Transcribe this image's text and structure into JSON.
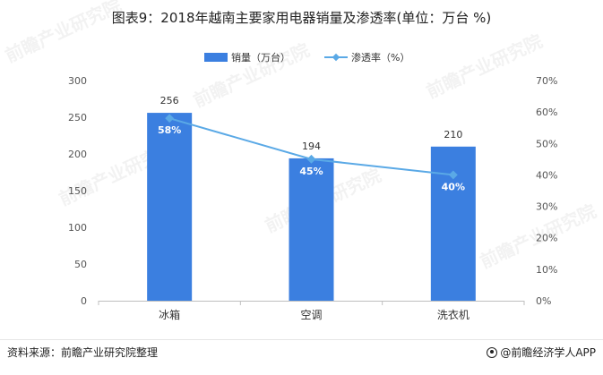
{
  "title": "图表9：2018年越南主要家用电器销量及渗透率(单位：万台 %)",
  "source": "资料来源：前瞻产业研究院整理",
  "brand": "@前瞻经济学人APP",
  "watermark": "前瞻产业研究院",
  "colors": {
    "bar": "#3b7fe0",
    "line": "#5aa9e6",
    "axis": "#8c8c8c",
    "text": "#555555",
    "bar_label_inside": "#ffffff"
  },
  "chart_data": {
    "type": "bar",
    "categories": [
      "冰箱",
      "空调",
      "洗衣机"
    ],
    "series": [
      {
        "name": "销量（万台）",
        "type": "bar",
        "axis": "left",
        "values": [
          256,
          194,
          210
        ]
      },
      {
        "name": "渗透率（%）",
        "type": "line",
        "axis": "right",
        "values": [
          58,
          45,
          40
        ],
        "value_labels": [
          "58%",
          "45%",
          "40%"
        ]
      }
    ],
    "y_left": {
      "ylim": [
        0,
        300
      ],
      "ticks": [
        "0",
        "50",
        "100",
        "150",
        "200",
        "250",
        "300"
      ]
    },
    "y_right": {
      "ylim": [
        0,
        70
      ],
      "ticks": [
        "0%",
        "10%",
        "20%",
        "30%",
        "40%",
        "50%",
        "60%",
        "70%"
      ]
    },
    "legend_position": "top-center",
    "grid": false
  }
}
